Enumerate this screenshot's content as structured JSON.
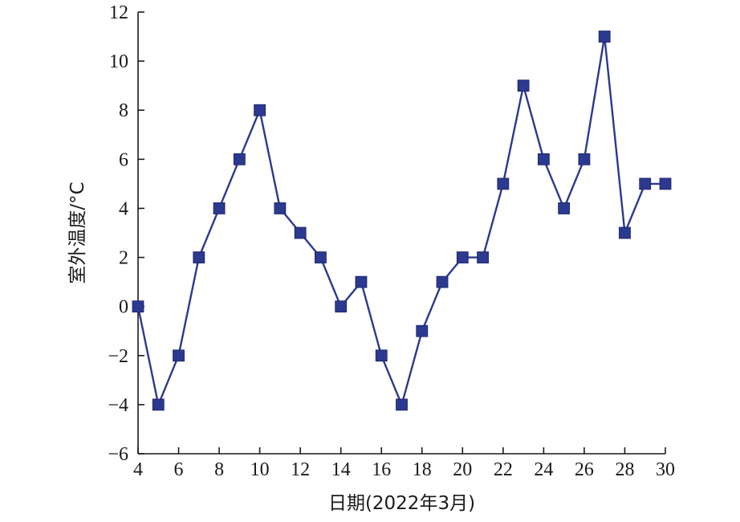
{
  "chart_data": {
    "type": "line",
    "xlabel": "日期(2022年3月)",
    "ylabel": "室外温度/°C",
    "xlim": [
      4,
      30
    ],
    "ylim": [
      -6,
      12
    ],
    "x_ticks": [
      4,
      6,
      8,
      10,
      12,
      14,
      16,
      18,
      20,
      22,
      24,
      26,
      28,
      30
    ],
    "y_ticks": [
      -6,
      -4,
      -2,
      0,
      2,
      4,
      6,
      8,
      10,
      12
    ],
    "y_tick_labels": [
      "−6",
      "−4",
      "−2",
      "0",
      "2",
      "4",
      "6",
      "8",
      "10",
      "12"
    ],
    "grid": false,
    "series": [
      {
        "color": "#2b3990",
        "marker": "square",
        "x": [
          4,
          5,
          6,
          7,
          8,
          9,
          10,
          11,
          12,
          13,
          14,
          15,
          16,
          17,
          18,
          19,
          20,
          21,
          22,
          23,
          24,
          25,
          26,
          27,
          28,
          29,
          30
        ],
        "y": [
          0,
          -4,
          -2,
          2,
          4,
          6,
          8,
          4,
          3,
          2,
          0,
          1,
          -2,
          -4,
          -1,
          1,
          2,
          2,
          5,
          9,
          6,
          4,
          6,
          11,
          3,
          5,
          5
        ]
      }
    ]
  }
}
